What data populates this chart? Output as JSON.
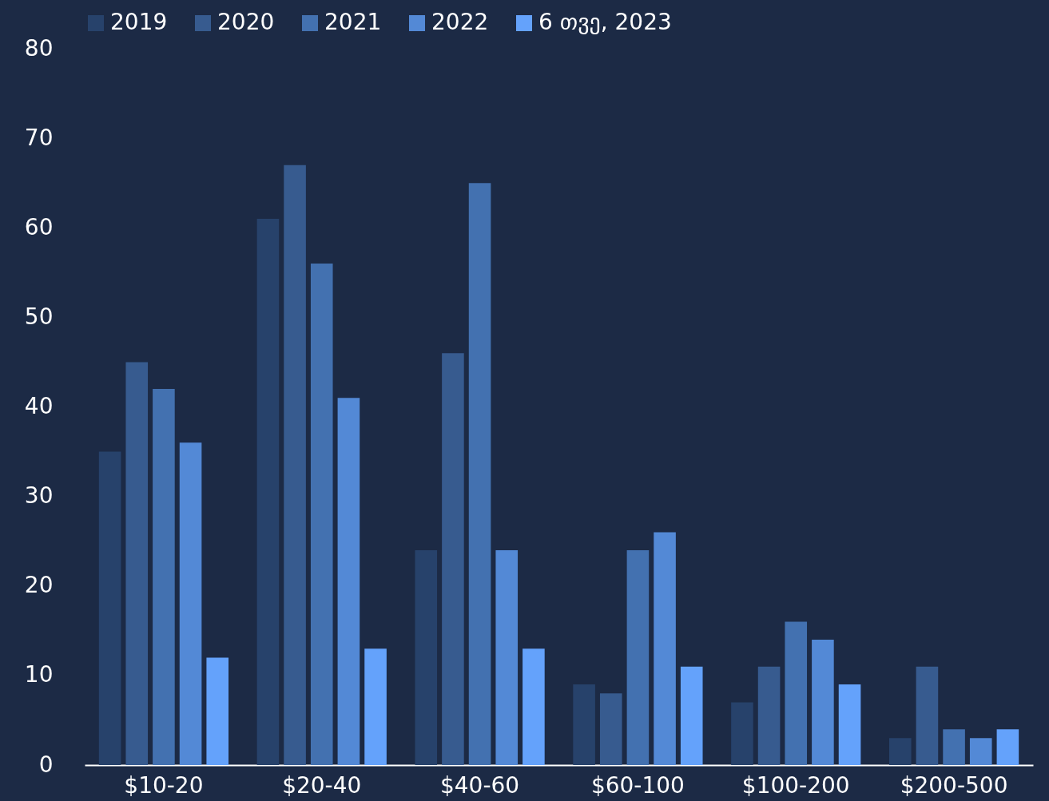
{
  "chart_data": {
    "type": "bar",
    "categories": [
      "$10-20",
      "$20-40",
      "$40-60",
      "$60-100",
      "$100-200",
      "$200-500"
    ],
    "series": [
      {
        "name": "2019",
        "color": "#27426b",
        "values": [
          35,
          61,
          24,
          9,
          7,
          3
        ]
      },
      {
        "name": "2020",
        "color": "#375b8f",
        "values": [
          45,
          67,
          46,
          8,
          11,
          11
        ]
      },
      {
        "name": "2021",
        "color": "#4371b0",
        "values": [
          42,
          56,
          65,
          24,
          16,
          4
        ]
      },
      {
        "name": "2022",
        "color": "#5389d6",
        "values": [
          36,
          41,
          24,
          26,
          14,
          3
        ]
      },
      {
        "name": "6 თვე, 2023",
        "color": "#64a2fb",
        "values": [
          12,
          13,
          13,
          11,
          9,
          4
        ]
      }
    ],
    "ylim": [
      0,
      80
    ],
    "yticks": [
      0,
      10,
      20,
      30,
      40,
      50,
      60,
      70,
      80
    ],
    "grid": false,
    "legend": "top"
  }
}
